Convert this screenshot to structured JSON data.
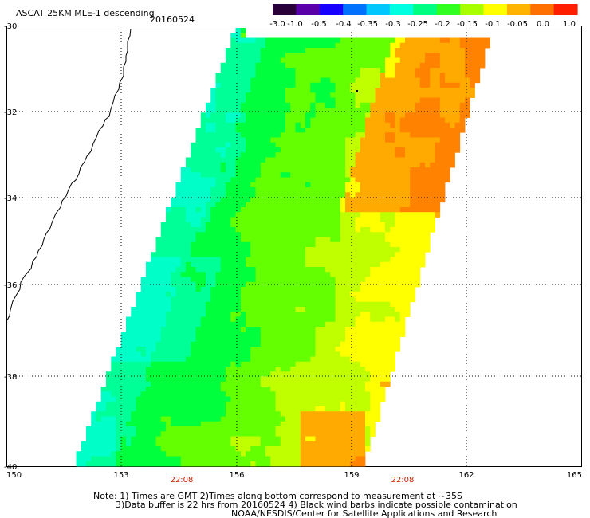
{
  "header": {
    "title": "ASCAT 25KM MLE-1 descending",
    "date": "20160524"
  },
  "colorbar": {
    "tick_labels": [
      "-3.0",
      "-1.0",
      "-0.5",
      "-0.4",
      "-0.35",
      "-0.3",
      "-0.25",
      "-0.2",
      "-0.15",
      "-0.1",
      "-0.05",
      "0.0",
      "1.0"
    ],
    "colors": [
      "#2a0038",
      "#5a00a8",
      "#1800ff",
      "#0070ff",
      "#00c8ff",
      "#00ffe0",
      "#00ff80",
      "#30ff20",
      "#a8ff00",
      "#ffff00",
      "#ffb400",
      "#ff7000",
      "#ff1e00"
    ]
  },
  "axes": {
    "x_tick_labels": [
      "150",
      "153",
      "156",
      "159",
      "162",
      "165"
    ],
    "y_tick_labels": [
      "-30",
      "-32",
      "-34",
      "-36",
      "-38",
      "-40"
    ],
    "time_labels": [
      "22:08",
      "22:08"
    ],
    "time_label_color": "#cc2200"
  },
  "swath_field": {
    "colors": {
      "cyan": "#00ffc8",
      "teal": "#00ff96",
      "green": "#00ff3c",
      "lime": "#64ff00",
      "yellowgreen": "#c0ff00",
      "yellow": "#ffff00",
      "orange": "#ffaa00",
      "deep_orange": "#ff8200"
    }
  },
  "notes": {
    "line1": "Note: 1) Times are GMT 2)Times along bottom correspond to measurement at ~35S",
    "line2": "3)Data buffer is 22 hrs from 20160524 4) Black wind barbs indicate possible contamination",
    "line3": "NOAA/NESDIS/Center for Satellite Applications and Research"
  }
}
